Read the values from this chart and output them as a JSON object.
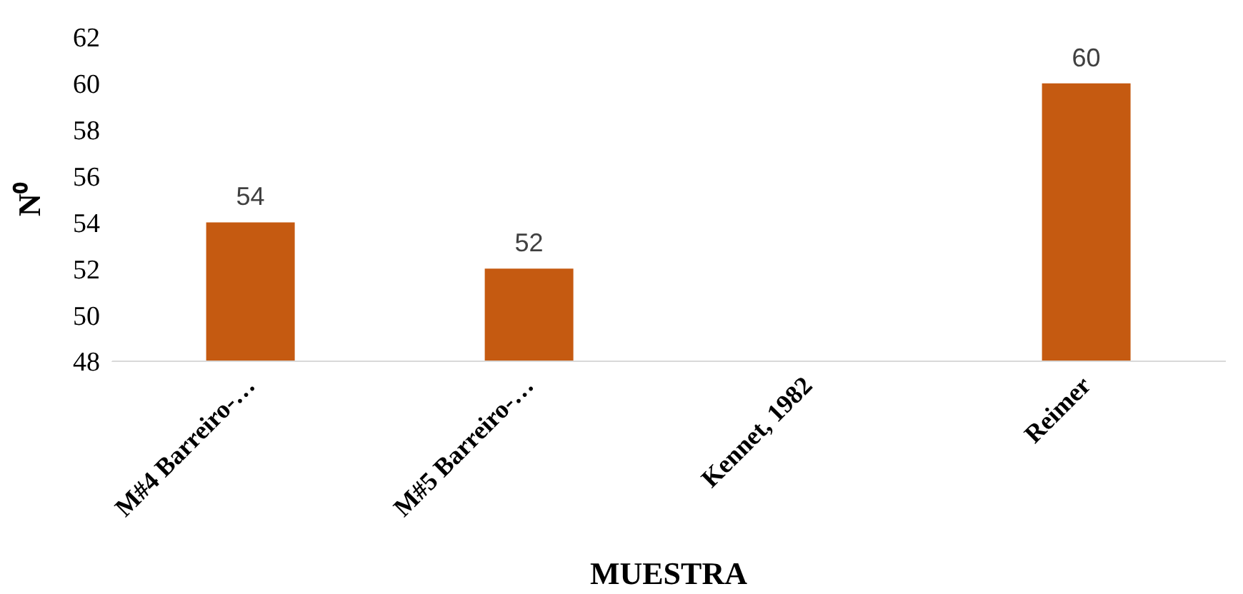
{
  "chart_data": {
    "type": "bar",
    "xlabel": "MUESTRA",
    "ylabel": "N⁰",
    "categories": [
      "M#4 Barreiro-…",
      "M#5 Barreiro-…",
      "Kennet, 1982",
      "Reimer"
    ],
    "values": [
      54,
      52,
      null,
      60
    ],
    "color": "#c55a11",
    "ylim": [
      48,
      62
    ],
    "yticks": [
      48,
      50,
      52,
      54,
      56,
      58,
      60,
      62
    ],
    "grid": false,
    "data_labels": true
  }
}
